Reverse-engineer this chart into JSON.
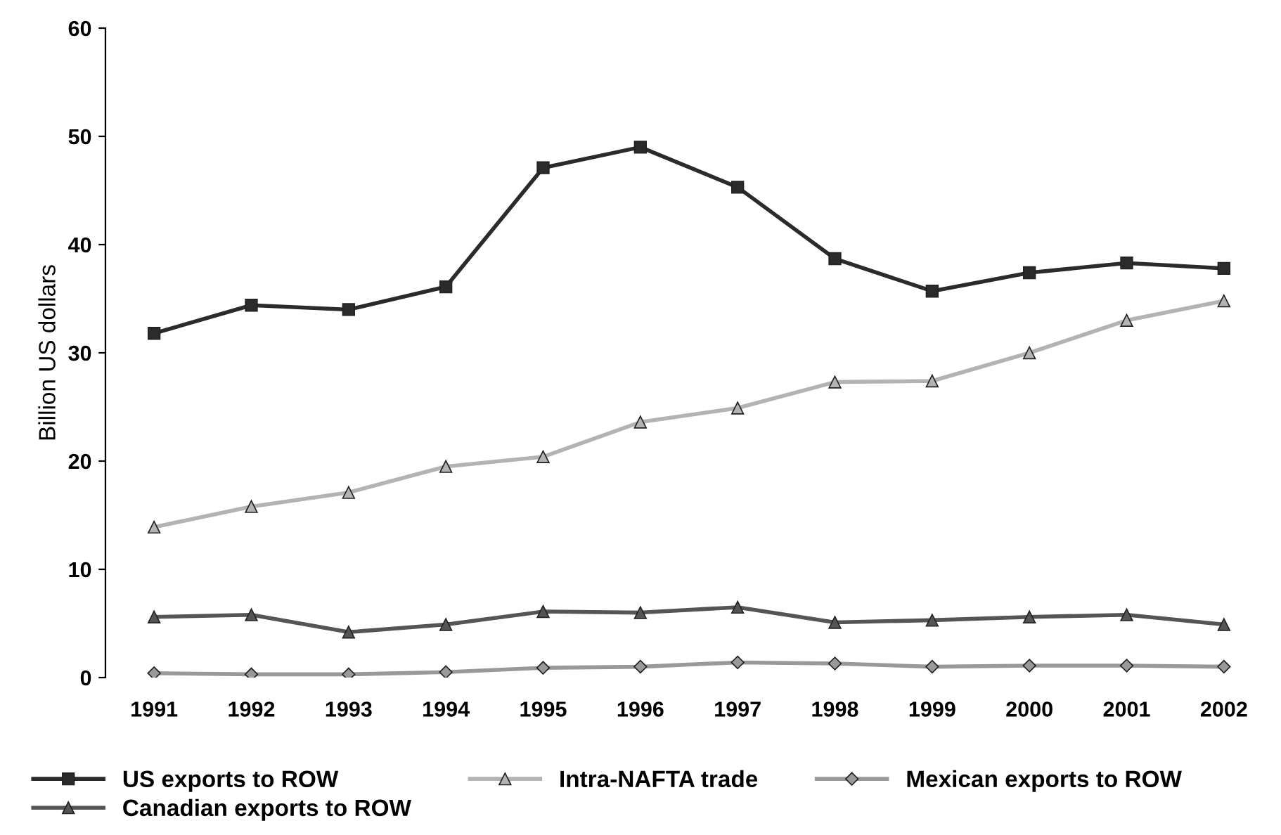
{
  "chart_data": {
    "type": "line",
    "ylabel": "Billion US dollars",
    "categories": [
      "1991",
      "1992",
      "1993",
      "1994",
      "1995",
      "1996",
      "1997",
      "1998",
      "1999",
      "2000",
      "2001",
      "2002"
    ],
    "series": [
      {
        "name": "US exports to ROW",
        "color": "#2b2b2b",
        "marker": "square",
        "values": [
          31.8,
          34.4,
          34.0,
          36.1,
          47.1,
          49.0,
          45.3,
          38.7,
          35.7,
          37.4,
          38.3,
          37.8
        ]
      },
      {
        "name": "Canadian exports to ROW",
        "color": "#555555",
        "marker": "triangle",
        "values": [
          5.6,
          5.8,
          4.2,
          4.9,
          6.1,
          6.0,
          6.5,
          5.1,
          5.3,
          5.6,
          5.8,
          4.9
        ]
      },
      {
        "name": "Intra-NAFTA trade",
        "color": "#b3b3b3",
        "marker": "triangle",
        "values": [
          13.9,
          15.8,
          17.1,
          19.5,
          20.4,
          23.6,
          24.9,
          27.3,
          27.4,
          30.0,
          33.0,
          34.8
        ]
      },
      {
        "name": "Mexican exports to ROW",
        "color": "#999999",
        "marker": "diamond",
        "values": [
          0.4,
          0.3,
          0.3,
          0.5,
          0.9,
          1.0,
          1.4,
          1.3,
          1.0,
          1.1,
          1.1,
          1.0
        ]
      }
    ],
    "ylim": [
      0,
      60
    ],
    "yticks": [
      0,
      10,
      20,
      30,
      40,
      50,
      60
    ],
    "grid": false,
    "legend": "bottom",
    "line_style": "solid"
  }
}
